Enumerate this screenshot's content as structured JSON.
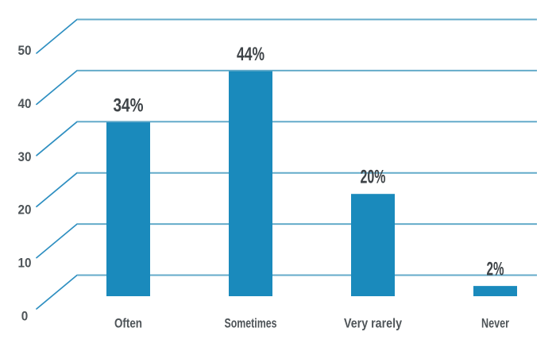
{
  "chart_data": {
    "type": "bar",
    "title": "",
    "xlabel": "",
    "ylabel": "",
    "categories": [
      "Often",
      "Sometimes",
      "Very rarely",
      "Never"
    ],
    "values": [
      34,
      44,
      20,
      2
    ],
    "data_labels": [
      "34%",
      "44%",
      "20%",
      "2%"
    ],
    "y_ticks": [
      0,
      10,
      20,
      30,
      40,
      50
    ],
    "ylim": [
      0,
      55
    ],
    "grid": true,
    "legend": false,
    "gridline_style": "horizontal lines with slanted connector segments from axis tick labels",
    "colors": {
      "bar": "#1A8ABC",
      "gridline": "#64ABCA",
      "gridline_diagonal": "#2E8FC1",
      "data_label_text": "#3E4347",
      "axis_label_text": "#4E5458",
      "background": "#FFFFFF"
    }
  }
}
